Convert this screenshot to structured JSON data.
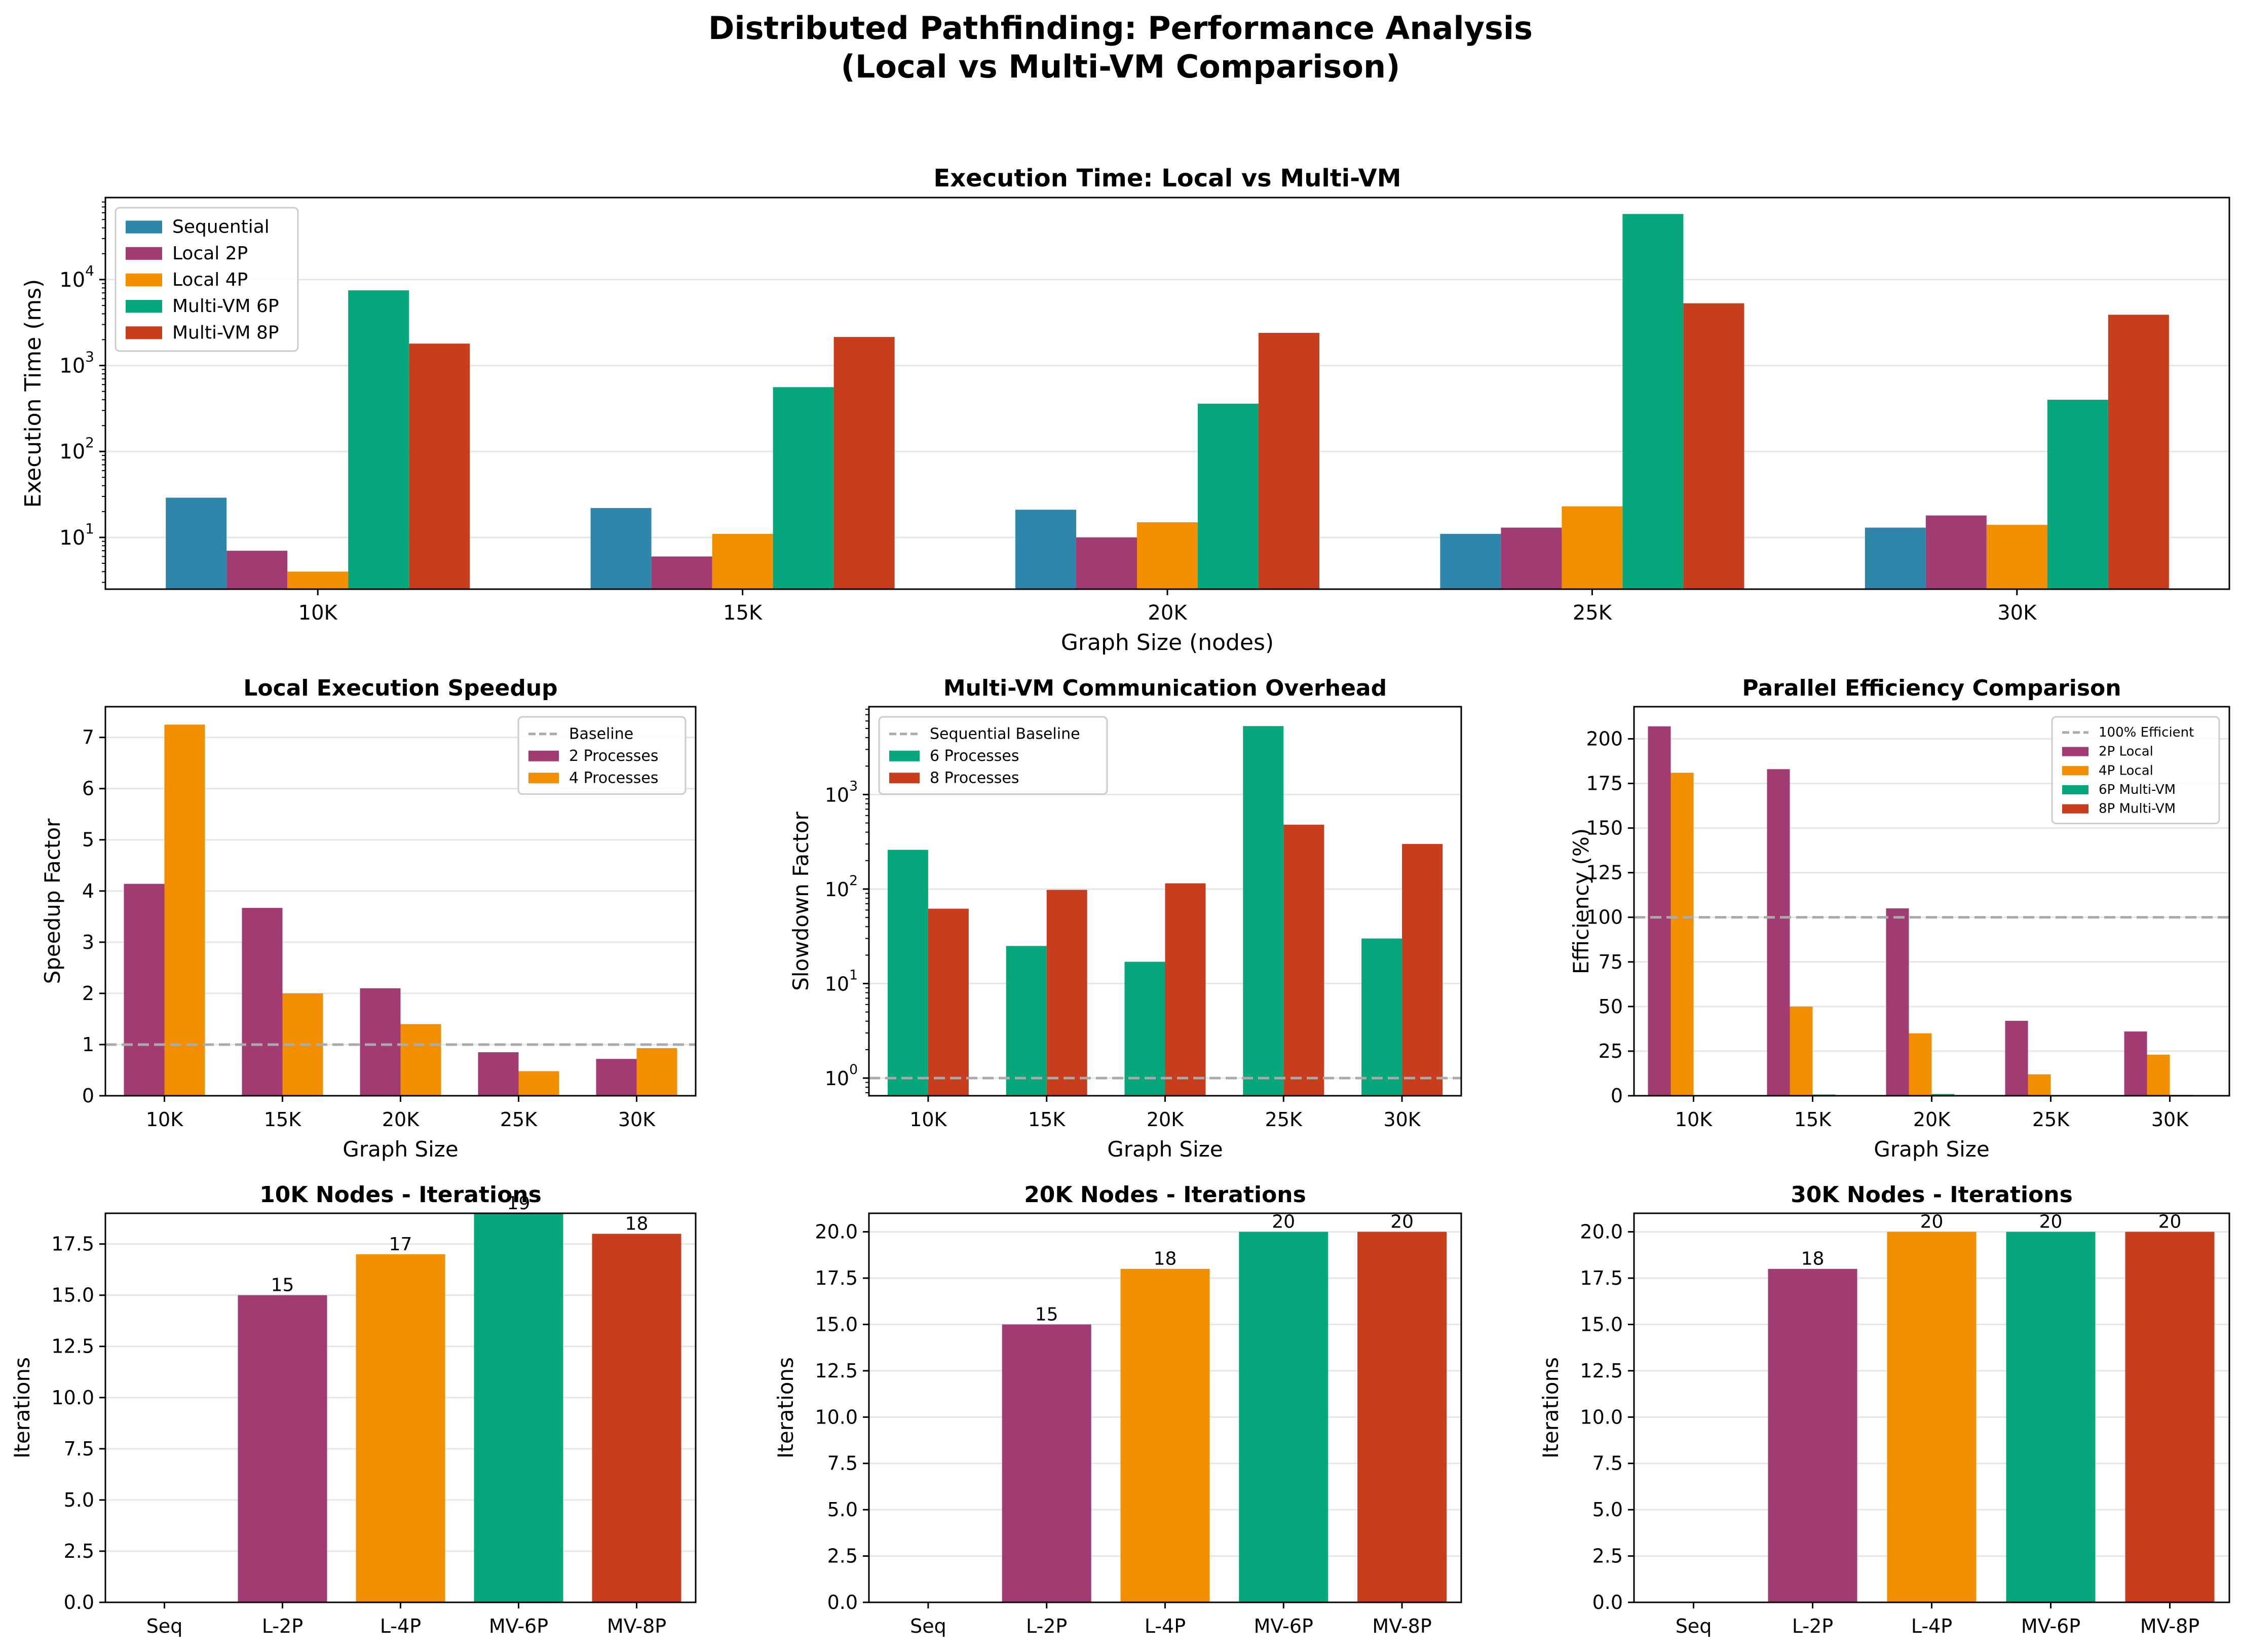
{
  "suptitle": [
    "Distributed Pathfinding: Performance Analysis",
    "(Local vs Multi-VM Comparison)"
  ],
  "colors": {
    "sequential": "#2e86ab",
    "p2": "#a23b72",
    "p4": "#f18f01",
    "p6": "#06a77d",
    "p8": "#c73e1d",
    "baseline": "#aaaaaa",
    "grid": "#e6e6e6"
  },
  "chart_data": [
    {
      "id": "exec",
      "type": "bar",
      "title": "Execution Time: Local vs Multi-VM",
      "xlabel": "Graph Size (nodes)",
      "ylabel": "Execution Time (ms)",
      "yscale": "log",
      "ylim": [
        2.5,
        90000
      ],
      "yticks": [
        {
          "value": 10,
          "base": "10",
          "exp": "1"
        },
        {
          "value": 100,
          "base": "10",
          "exp": "2"
        },
        {
          "value": 1000,
          "base": "10",
          "exp": "3"
        },
        {
          "value": 10000,
          "base": "10",
          "exp": "4"
        }
      ],
      "grid": true,
      "legend": "upper left",
      "categories": [
        "10K",
        "15K",
        "20K",
        "25K",
        "30K"
      ],
      "series": [
        {
          "name": "Sequential",
          "color": "sequential",
          "values": [
            29,
            22,
            21,
            11,
            13
          ]
        },
        {
          "name": "Local 2P",
          "color": "p2",
          "values": [
            7,
            6,
            10,
            13,
            18
          ]
        },
        {
          "name": "Local 4P",
          "color": "p4",
          "values": [
            4,
            11,
            15,
            23,
            14
          ]
        },
        {
          "name": "Multi-VM 6P",
          "color": "p6",
          "values": [
            7500,
            560,
            360,
            58000,
            400
          ]
        },
        {
          "name": "Multi-VM 8P",
          "color": "p8",
          "values": [
            1800,
            2150,
            2400,
            5300,
            3900
          ]
        }
      ]
    },
    {
      "id": "speedup",
      "type": "bar",
      "title": "Local Execution Speedup",
      "xlabel": "Graph Size",
      "ylabel": "Speedup Factor",
      "yscale": "linear",
      "ylim": [
        0,
        7.6
      ],
      "yticks": [
        0,
        1,
        2,
        3,
        4,
        5,
        6,
        7
      ],
      "grid": true,
      "legend": "upper right",
      "baseline": {
        "name": "Baseline",
        "value": 1
      },
      "categories": [
        "10K",
        "15K",
        "20K",
        "25K",
        "30K"
      ],
      "series": [
        {
          "name": "2 Processes",
          "color": "p2",
          "values": [
            4.14,
            3.67,
            2.1,
            0.85,
            0.72
          ]
        },
        {
          "name": "4 Processes",
          "color": "p4",
          "values": [
            7.25,
            2.0,
            1.4,
            0.48,
            0.93
          ]
        }
      ]
    },
    {
      "id": "overhead",
      "type": "bar",
      "title": "Multi-VM Communication Overhead",
      "xlabel": "Graph Size",
      "ylabel": "Slowdown Factor",
      "yscale": "log",
      "ylim": [
        0.65,
        8500
      ],
      "yticks": [
        {
          "value": 1,
          "base": "10",
          "exp": "0"
        },
        {
          "value": 10,
          "base": "10",
          "exp": "1"
        },
        {
          "value": 100,
          "base": "10",
          "exp": "2"
        },
        {
          "value": 1000,
          "base": "10",
          "exp": "3"
        }
      ],
      "grid": true,
      "legend": "upper left",
      "baseline": {
        "name": "Sequential Baseline",
        "value": 1
      },
      "categories": [
        "10K",
        "15K",
        "20K",
        "25K",
        "30K"
      ],
      "series": [
        {
          "name": "6 Processes",
          "color": "p6",
          "values": [
            260,
            25,
            17,
            5300,
            30
          ]
        },
        {
          "name": "8 Processes",
          "color": "p8",
          "values": [
            62,
            98,
            115,
            480,
            300
          ]
        }
      ]
    },
    {
      "id": "efficiency",
      "type": "bar",
      "title": "Parallel Efficiency Comparison",
      "xlabel": "Graph Size",
      "ylabel": "Efficiency (%)",
      "yscale": "linear",
      "ylim": [
        0,
        218
      ],
      "yticks": [
        0,
        25,
        50,
        75,
        100,
        125,
        150,
        175,
        200
      ],
      "grid": true,
      "legend": "upper right",
      "baseline": {
        "name": "100% Efficient",
        "value": 100
      },
      "categories": [
        "10K",
        "15K",
        "20K",
        "25K",
        "30K"
      ],
      "series": [
        {
          "name": "2P Local",
          "color": "p2",
          "values": [
            207,
            183,
            105,
            42,
            36
          ]
        },
        {
          "name": "4P Local",
          "color": "p4",
          "values": [
            181,
            50,
            35,
            12,
            23
          ]
        },
        {
          "name": "6P Multi-VM",
          "color": "p6",
          "values": [
            0.06,
            0.7,
            1,
            0.003,
            0.5
          ]
        },
        {
          "name": "8P Multi-VM",
          "color": "p8",
          "values": [
            0.2,
            0.13,
            0.1,
            0.03,
            0.04
          ]
        }
      ]
    },
    {
      "id": "iter10",
      "type": "bar",
      "title": "10K Nodes - Iterations",
      "xlabel": "",
      "ylabel": "Iterations",
      "yscale": "linear",
      "ylim": [
        0,
        19.0
      ],
      "yticks": [
        0.0,
        2.5,
        5.0,
        7.5,
        10.0,
        12.5,
        15.0,
        17.5
      ],
      "grid": true,
      "categories": [
        "Seq",
        "L-2P",
        "L-4P",
        "MV-6P",
        "MV-8P"
      ],
      "bar_colors": [
        "sequential",
        "p2",
        "p4",
        "p6",
        "p8"
      ],
      "values": [
        0,
        15,
        17,
        19,
        18
      ],
      "data_labels": [
        "",
        "15",
        "17",
        "19",
        "18"
      ]
    },
    {
      "id": "iter20",
      "type": "bar",
      "title": "20K Nodes - Iterations",
      "xlabel": "",
      "ylabel": "Iterations",
      "yscale": "linear",
      "ylim": [
        0,
        21.0
      ],
      "yticks": [
        0.0,
        2.5,
        5.0,
        7.5,
        10.0,
        12.5,
        15.0,
        17.5,
        20.0
      ],
      "grid": true,
      "categories": [
        "Seq",
        "L-2P",
        "L-4P",
        "MV-6P",
        "MV-8P"
      ],
      "bar_colors": [
        "sequential",
        "p2",
        "p4",
        "p6",
        "p8"
      ],
      "values": [
        0,
        15,
        18,
        20,
        20
      ],
      "data_labels": [
        "",
        "15",
        "18",
        "20",
        "20"
      ]
    },
    {
      "id": "iter30",
      "type": "bar",
      "title": "30K Nodes - Iterations",
      "xlabel": "",
      "ylabel": "Iterations",
      "yscale": "linear",
      "ylim": [
        0,
        21.0
      ],
      "yticks": [
        0.0,
        2.5,
        5.0,
        7.5,
        10.0,
        12.5,
        15.0,
        17.5,
        20.0
      ],
      "grid": true,
      "categories": [
        "Seq",
        "L-2P",
        "L-4P",
        "MV-6P",
        "MV-8P"
      ],
      "bar_colors": [
        "sequential",
        "p2",
        "p4",
        "p6",
        "p8"
      ],
      "values": [
        0,
        18,
        20,
        20,
        20
      ],
      "data_labels": [
        "",
        "18",
        "20",
        "20",
        "20"
      ]
    }
  ]
}
